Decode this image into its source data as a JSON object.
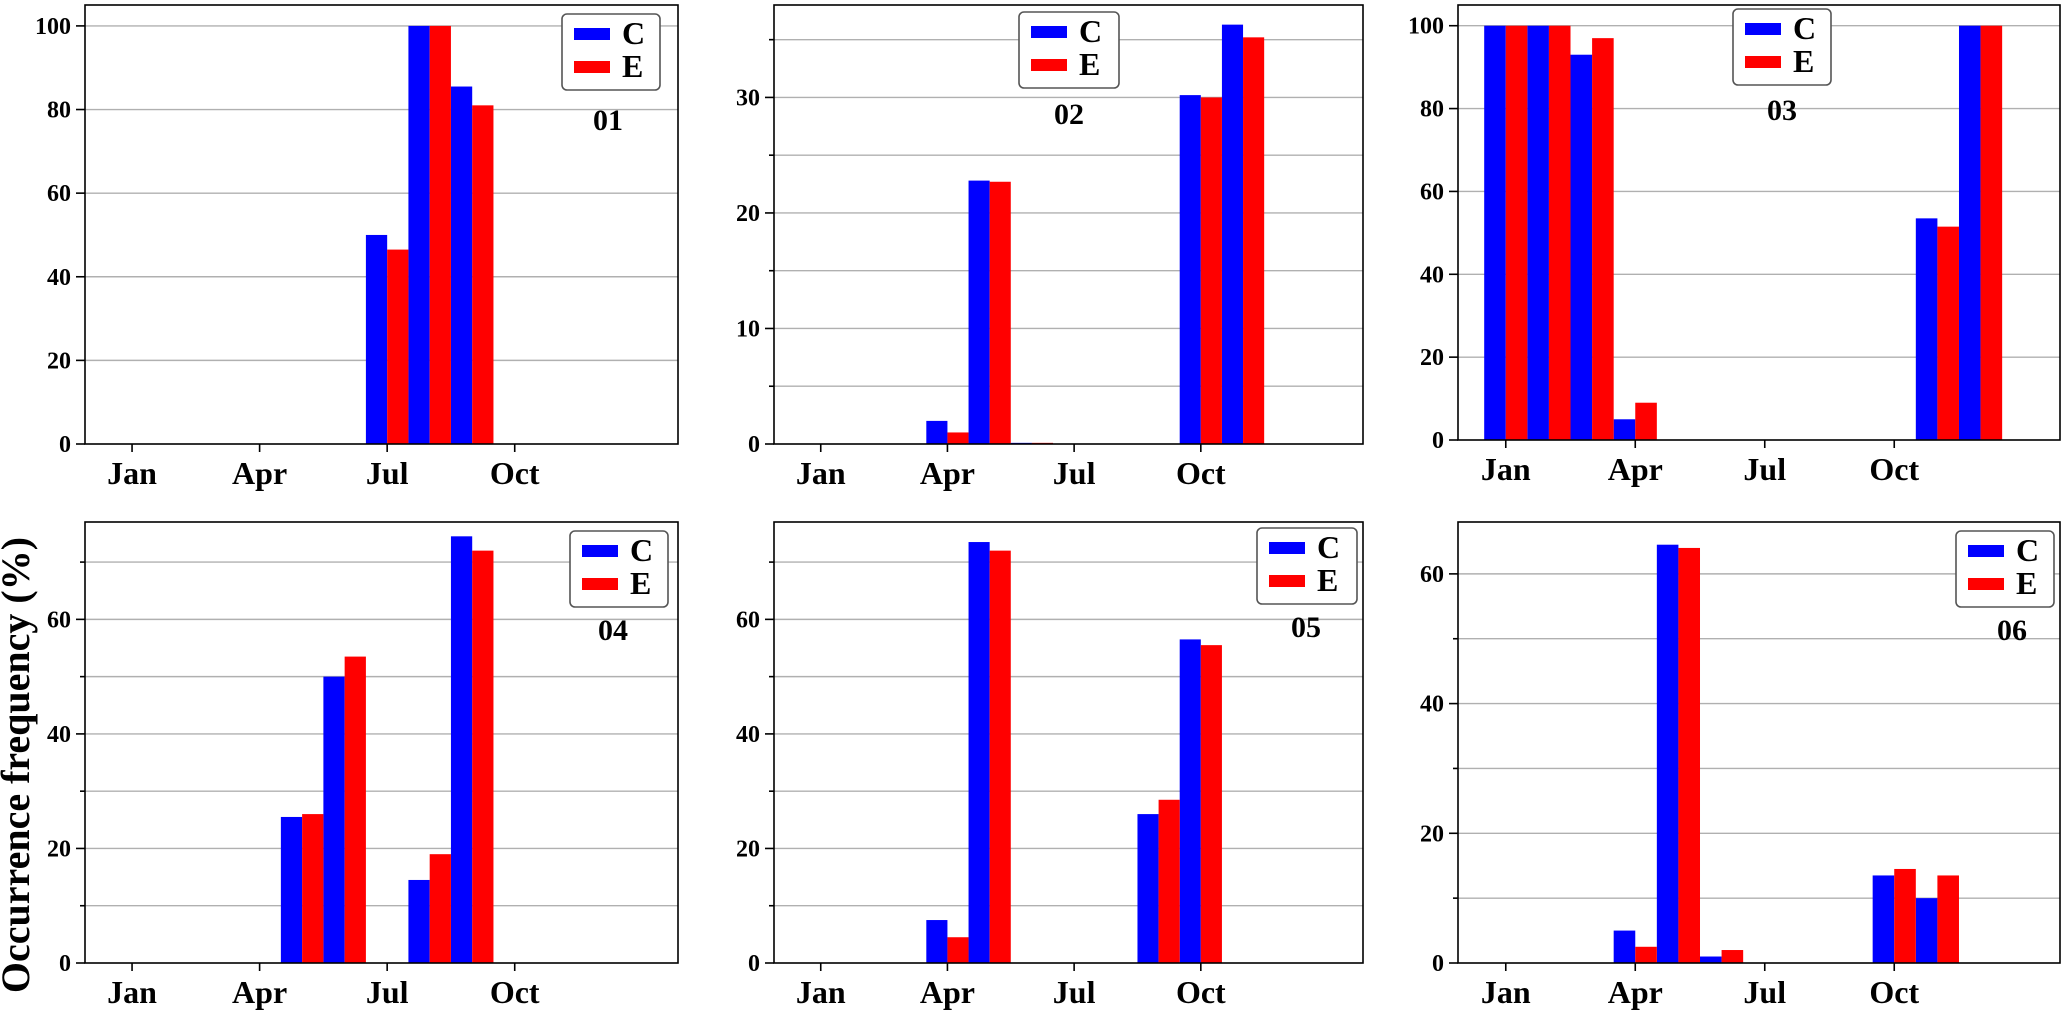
{
  "ylabel": "Occurrence frequency (%)",
  "chart_data": [
    {
      "type": "bar",
      "title": "01",
      "x": [
        1,
        2,
        3,
        4,
        5,
        6,
        7,
        8,
        9,
        10,
        11,
        12
      ],
      "xticks": [
        {
          "label": "Jan",
          "month": 1
        },
        {
          "label": "Apr",
          "month": 4
        },
        {
          "label": "Jul",
          "month": 7
        },
        {
          "label": "Oct",
          "month": 10
        }
      ],
      "ylim": [
        0,
        105
      ],
      "yticks": [
        0,
        20,
        40,
        60,
        80,
        100
      ],
      "ygrid": [
        0,
        20,
        40,
        60,
        80,
        100
      ],
      "grid": true,
      "legend_position": "top-right",
      "series": [
        {
          "name": "C",
          "color": "#0000ff",
          "values": [
            0,
            0,
            0,
            0,
            0,
            0,
            50,
            100,
            85.5,
            0,
            0,
            0
          ]
        },
        {
          "name": "E",
          "color": "#ff0000",
          "values": [
            0,
            0,
            0,
            0,
            0,
            0,
            46.5,
            100,
            81,
            0,
            0,
            0
          ]
        }
      ]
    },
    {
      "type": "bar",
      "title": "02",
      "x": [
        1,
        2,
        3,
        4,
        5,
        6,
        7,
        8,
        9,
        10,
        11,
        12
      ],
      "xticks": [
        {
          "label": "Jan",
          "month": 1
        },
        {
          "label": "Apr",
          "month": 4
        },
        {
          "label": "Jul",
          "month": 7
        },
        {
          "label": "Oct",
          "month": 10
        }
      ],
      "ylim": [
        0,
        38
      ],
      "yticks": [
        0,
        10,
        20,
        30
      ],
      "ygrid": [
        0,
        5,
        10,
        15,
        20,
        25,
        30,
        35
      ],
      "grid": true,
      "legend_position": "top-center",
      "series": [
        {
          "name": "C",
          "color": "#0000ff",
          "values": [
            0,
            0,
            0,
            2,
            22.8,
            0.1,
            0,
            0,
            0,
            30.2,
            36.3,
            0
          ]
        },
        {
          "name": "E",
          "color": "#ff0000",
          "values": [
            0,
            0,
            0,
            1,
            22.7,
            0.1,
            0,
            0,
            0,
            30,
            35.2,
            0
          ]
        }
      ]
    },
    {
      "type": "bar",
      "title": "03",
      "x": [
        1,
        2,
        3,
        4,
        5,
        6,
        7,
        8,
        9,
        10,
        11,
        12
      ],
      "xticks": [
        {
          "label": "Jan",
          "month": 1
        },
        {
          "label": "Apr",
          "month": 4
        },
        {
          "label": "Jul",
          "month": 7
        },
        {
          "label": "Oct",
          "month": 10
        }
      ],
      "ylim": [
        0,
        105
      ],
      "yticks": [
        0,
        20,
        40,
        60,
        80,
        100
      ],
      "ygrid": [
        0,
        20,
        40,
        60,
        80,
        100
      ],
      "grid": true,
      "legend_position": "top-center",
      "series": [
        {
          "name": "C",
          "color": "#0000ff",
          "values": [
            100,
            100,
            93,
            5,
            0,
            0,
            0,
            0,
            0,
            0,
            53.5,
            100
          ]
        },
        {
          "name": "E",
          "color": "#ff0000",
          "values": [
            100,
            100,
            97,
            9,
            0,
            0,
            0,
            0,
            0,
            0,
            51.5,
            100
          ]
        }
      ]
    },
    {
      "type": "bar",
      "title": "04",
      "x": [
        1,
        2,
        3,
        4,
        5,
        6,
        7,
        8,
        9,
        10,
        11,
        12
      ],
      "xticks": [
        {
          "label": "Jan",
          "month": 1
        },
        {
          "label": "Apr",
          "month": 4
        },
        {
          "label": "Jul",
          "month": 7
        },
        {
          "label": "Oct",
          "month": 10
        }
      ],
      "ylim": [
        0,
        77
      ],
      "yticks": [
        0,
        20,
        40,
        60
      ],
      "ygrid": [
        0,
        10,
        20,
        30,
        40,
        50,
        60,
        70
      ],
      "grid": true,
      "legend_position": "top-right",
      "series": [
        {
          "name": "C",
          "color": "#0000ff",
          "values": [
            0,
            0,
            0,
            0,
            25.5,
            50,
            0,
            14.5,
            74.5,
            0,
            0,
            0
          ]
        },
        {
          "name": "E",
          "color": "#ff0000",
          "values": [
            0,
            0,
            0,
            0,
            26,
            53.5,
            0,
            19,
            72,
            0,
            0,
            0
          ]
        }
      ]
    },
    {
      "type": "bar",
      "title": "05",
      "x": [
        1,
        2,
        3,
        4,
        5,
        6,
        7,
        8,
        9,
        10,
        11,
        12
      ],
      "xticks": [
        {
          "label": "Jan",
          "month": 1
        },
        {
          "label": "Apr",
          "month": 4
        },
        {
          "label": "Jul",
          "month": 7
        },
        {
          "label": "Oct",
          "month": 10
        }
      ],
      "ylim": [
        0,
        77
      ],
      "yticks": [
        0,
        20,
        40,
        60
      ],
      "ygrid": [
        0,
        10,
        20,
        30,
        40,
        50,
        60,
        70
      ],
      "grid": true,
      "legend_position": "top-right",
      "series": [
        {
          "name": "C",
          "color": "#0000ff",
          "values": [
            0,
            0,
            0,
            7.5,
            73.5,
            0,
            0,
            0,
            26,
            56.5,
            0,
            0
          ]
        },
        {
          "name": "E",
          "color": "#ff0000",
          "values": [
            0,
            0,
            0,
            4.5,
            72,
            0,
            0,
            0,
            28.5,
            55.5,
            0,
            0
          ]
        }
      ]
    },
    {
      "type": "bar",
      "title": "06",
      "x": [
        1,
        2,
        3,
        4,
        5,
        6,
        7,
        8,
        9,
        10,
        11,
        12
      ],
      "xticks": [
        {
          "label": "Jan",
          "month": 1
        },
        {
          "label": "Apr",
          "month": 4
        },
        {
          "label": "Jul",
          "month": 7
        },
        {
          "label": "Oct",
          "month": 10
        }
      ],
      "ylim": [
        0,
        68
      ],
      "yticks": [
        0,
        20,
        40,
        60
      ],
      "ygrid": [
        0,
        10,
        20,
        30,
        40,
        50,
        60
      ],
      "grid": true,
      "legend_position": "top-right",
      "series": [
        {
          "name": "C",
          "color": "#0000ff",
          "values": [
            0,
            0,
            0,
            5,
            64.5,
            1,
            0,
            0,
            0,
            13.5,
            10,
            0
          ]
        },
        {
          "name": "E",
          "color": "#ff0000",
          "values": [
            0,
            0,
            0,
            2.5,
            64,
            2,
            0,
            0,
            0,
            14.5,
            13.5,
            0
          ]
        }
      ]
    }
  ]
}
